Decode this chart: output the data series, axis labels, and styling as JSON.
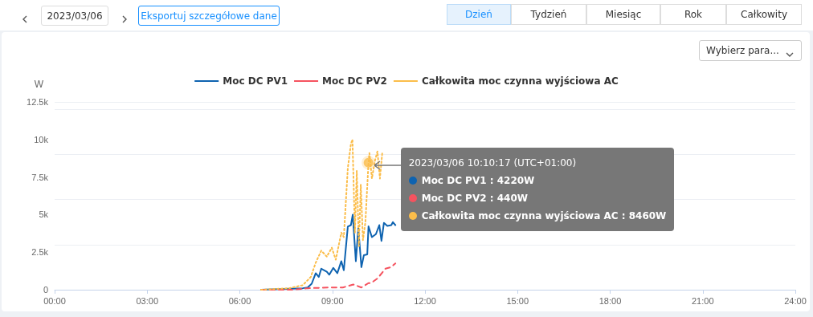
{
  "chart_data": {
    "type": "line",
    "ylabel": "W",
    "xlim": [
      0,
      24
    ],
    "xticks": [
      {
        "value": 0,
        "label": "00:00"
      },
      {
        "value": 3,
        "label": "03:00"
      },
      {
        "value": 6,
        "label": "06:00"
      },
      {
        "value": 9,
        "label": "09:00"
      },
      {
        "value": 12,
        "label": "12:00"
      },
      {
        "value": 15,
        "label": "15:00"
      },
      {
        "value": 18,
        "label": "18:00"
      },
      {
        "value": 21,
        "label": "21:00"
      },
      {
        "value": 24,
        "label": "24:00"
      }
    ],
    "ylim": [
      0,
      12500
    ],
    "yticks": [
      0,
      {
        "value": 2500,
        "label": "2.5k"
      },
      {
        "value": 5000,
        "label": "5k"
      },
      {
        "value": 7500,
        "label": "7.5k"
      },
      {
        "value": 10000,
        "label": "10k"
      },
      {
        "value": 12500,
        "label": "12.5k"
      }
    ],
    "grid": "y",
    "legend": "top",
    "marker": "none",
    "series": [
      {
        "name": "Moc DC PV1",
        "color": "#0e63b0",
        "line_style": "solid",
        "x": [
          6.69,
          8.04,
          8.2,
          8.33,
          8.46,
          8.56,
          8.64,
          8.82,
          8.9,
          9.03,
          9.16,
          9.29,
          9.37,
          9.5,
          9.6,
          9.66,
          9.76,
          9.84,
          9.94,
          10.02,
          10.13,
          10.17,
          10.28,
          10.41,
          10.52,
          10.59,
          10.67,
          10.78,
          10.91,
          10.96,
          11.04
        ],
        "values": [
          0,
          100,
          150,
          400,
          1100,
          850,
          1400,
          1200,
          1000,
          1450,
          1100,
          1900,
          1300,
          4200,
          4300,
          5000,
          1900,
          4100,
          1500,
          2300,
          2350,
          4220,
          3500,
          3700,
          4300,
          3250,
          4450,
          4250,
          4300,
          4500,
          4300
        ]
      },
      {
        "name": "Moc DC PV2",
        "color": "#f5535f",
        "line_style": "dashed",
        "x": [
          6.69,
          7.68,
          8.2,
          8.9,
          9.34,
          9.68,
          9.94,
          10.17,
          10.26,
          10.46,
          10.72,
          10.9,
          11.04
        ],
        "values": [
          0,
          0,
          100,
          150,
          150,
          350,
          150,
          440,
          450,
          750,
          1400,
          1500,
          1750
        ]
      },
      {
        "name": "Całkowita moc czynna wyjściowa AC",
        "color": "#fbbd4a",
        "line_style": "dotted",
        "x": [
          6.69,
          7.6,
          8.04,
          8.3,
          8.46,
          8.64,
          8.82,
          8.98,
          9.11,
          9.29,
          9.37,
          9.5,
          9.6,
          9.65,
          9.73,
          9.79,
          9.86,
          9.92,
          9.99,
          10.07,
          10.17,
          10.2,
          10.28,
          10.38,
          10.46,
          10.54,
          10.62
        ],
        "values": [
          0,
          100,
          300,
          850,
          1800,
          2600,
          2200,
          2800,
          2000,
          3800,
          3500,
          8100,
          9700,
          10000,
          3800,
          7900,
          2900,
          7000,
          3300,
          4500,
          8460,
          9100,
          7400,
          8600,
          9200,
          7400,
          9200
        ]
      }
    ],
    "annotations": [
      "2023/03/06",
      "Eksportuj szczegółowe dane",
      "Dzień",
      "Tydzień",
      "Miesiąc",
      "Rok",
      "Całkowity",
      "Wybierz para...",
      {
        "text": "2023/03/06 10:10:17 (UTC+01:00)",
        "x": 10.17,
        "y": 8460
      },
      "Moc DC PV1 : 4220W",
      "Moc DC PV2 : 440W",
      "Całkowita moc czynna wyjściowa AC : 8460W"
    ]
  }
}
